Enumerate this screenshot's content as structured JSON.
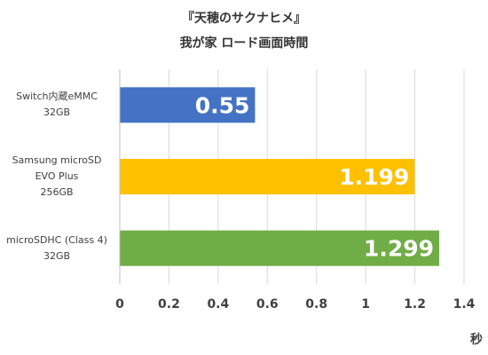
{
  "chart_data": {
    "type": "bar",
    "orientation": "horizontal",
    "title": "『天穂のサクナヒメ』",
    "subtitle": "我が家 ロード画面時間",
    "xlabel": "秒",
    "xlim": [
      0,
      1.4
    ],
    "xticks": [
      0,
      0.2,
      0.4,
      0.6,
      0.8,
      1,
      1.2,
      1.4
    ],
    "tick_labels": [
      "0",
      "0.2",
      "0.4",
      "0.6",
      "0.8",
      "1",
      "1.2",
      "1.4"
    ],
    "grid": "vertical",
    "categories": [
      [
        "Switch内蔵eMMC",
        "32GB"
      ],
      [
        "Samsung microSD",
        "EVO Plus",
        "256GB"
      ],
      [
        "microSDHC (Class 4)",
        "32GB"
      ]
    ],
    "values": [
      0.55,
      1.199,
      1.299
    ],
    "data_labels": [
      "0.55",
      "1.199",
      "1.299"
    ],
    "colors": [
      "#4472C4",
      "#FFC000",
      "#70AD47"
    ]
  }
}
